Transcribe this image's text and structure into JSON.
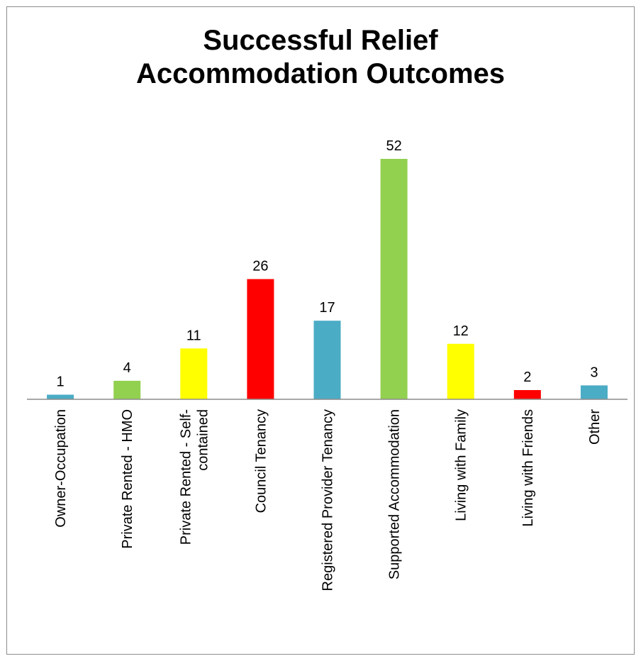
{
  "chart_data": {
    "type": "bar",
    "title_lines": [
      "Successful Relief",
      "Accommodation Outcomes"
    ],
    "categories": [
      [
        "Owner-Occupation"
      ],
      [
        "Private Rented - HMO"
      ],
      [
        "Private Rented - Self-",
        "contained"
      ],
      [
        "Council Tenancy"
      ],
      [
        "Registered Provider Tenancy"
      ],
      [
        "Supported Accommodation"
      ],
      [
        "Living with Family"
      ],
      [
        "Living with Friends"
      ],
      [
        "Other"
      ]
    ],
    "values": [
      1,
      4,
      11,
      26,
      17,
      52,
      12,
      2,
      3
    ],
    "bar_colors": [
      "#4bacc6",
      "#92d050",
      "#ffff00",
      "#ff0000",
      "#4bacc6",
      "#92d050",
      "#ffff00",
      "#ff0000",
      "#4bacc6"
    ],
    "ylim": [
      0,
      52
    ],
    "grid": false,
    "legend": "none",
    "xlabel": "",
    "ylabel": ""
  }
}
